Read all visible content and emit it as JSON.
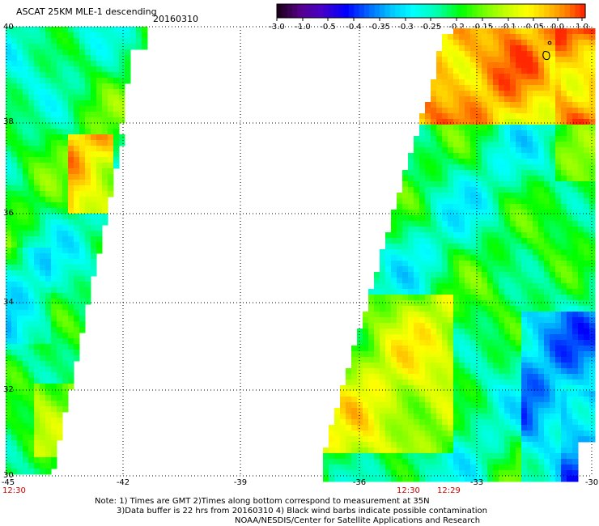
{
  "header": {
    "title": "ASCAT 25KM MLE-1 descending",
    "date": "20160310"
  },
  "colorbar": {
    "tick_labels": [
      "-3.0",
      "-1.0",
      "-0.5",
      "-0.4",
      "-0.35",
      "-0.3",
      "-0.25",
      "-0.2",
      "-0.15",
      "-0.1",
      "-0.05",
      "0.0",
      "1.0"
    ]
  },
  "map": {
    "lon_labels": [
      "-45",
      "-42",
      "-39",
      "-36",
      "-33",
      "-30"
    ],
    "lat_labels": [
      "40",
      "38",
      "36",
      "34",
      "32",
      "30"
    ],
    "time_labels": [
      "12:30",
      "12:30",
      "12:29"
    ],
    "colors": {
      "time_label": "#cc0000",
      "grid": "#000000"
    }
  },
  "notes": {
    "line1": "Note: 1) Times are GMT 2)Times along bottom correspond to measurement at 35N",
    "line2": "3)Data buffer is 22 hrs from 20160310 4) Black wind barbs indicate possible contamination",
    "line3": "NOAA/NESDIS/Center for Satellite Applications and Research"
  }
}
